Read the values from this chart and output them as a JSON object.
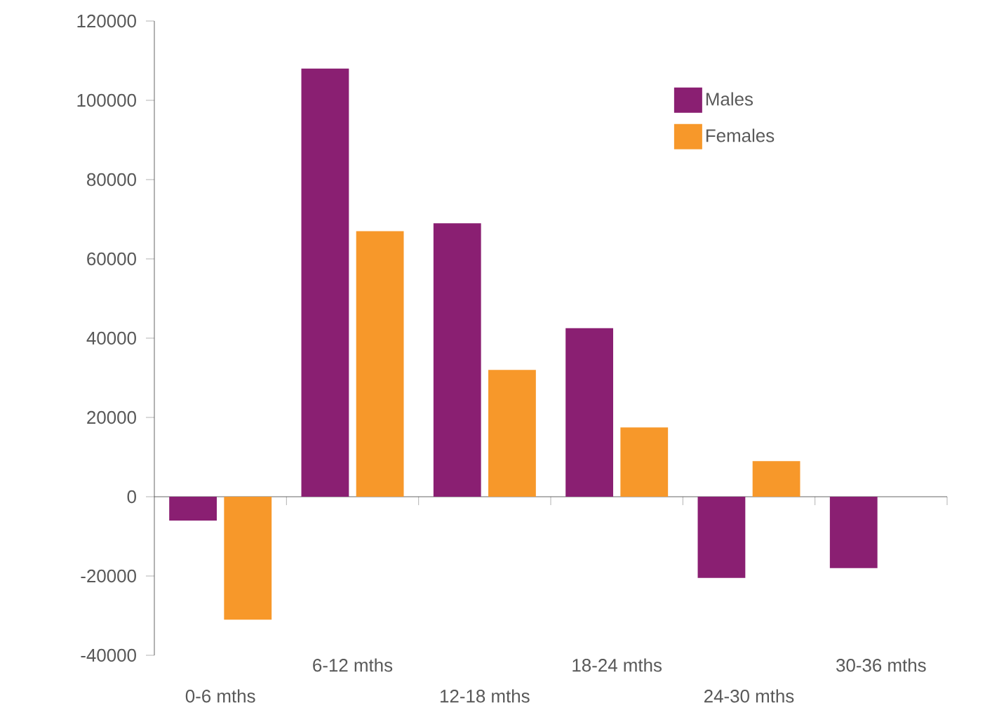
{
  "chart_data": {
    "type": "bar",
    "categories": [
      "0-6 mths",
      "6-12 mths",
      "12-18 mths",
      "18-24 mths",
      "24-30 mths",
      "30-36 mths"
    ],
    "series": [
      {
        "name": "Males",
        "color": "#8a1f72",
        "values": [
          -6000,
          108000,
          69000,
          42500,
          -20500,
          -18000
        ]
      },
      {
        "name": "Females",
        "color": "#f7982a",
        "values": [
          -31000,
          67000,
          32000,
          17500,
          9000,
          null
        ]
      }
    ],
    "ylim": [
      -40000,
      120000
    ],
    "yticks": [
      -40000,
      -20000,
      0,
      20000,
      40000,
      60000,
      80000,
      100000,
      120000
    ],
    "legend": "top right"
  }
}
